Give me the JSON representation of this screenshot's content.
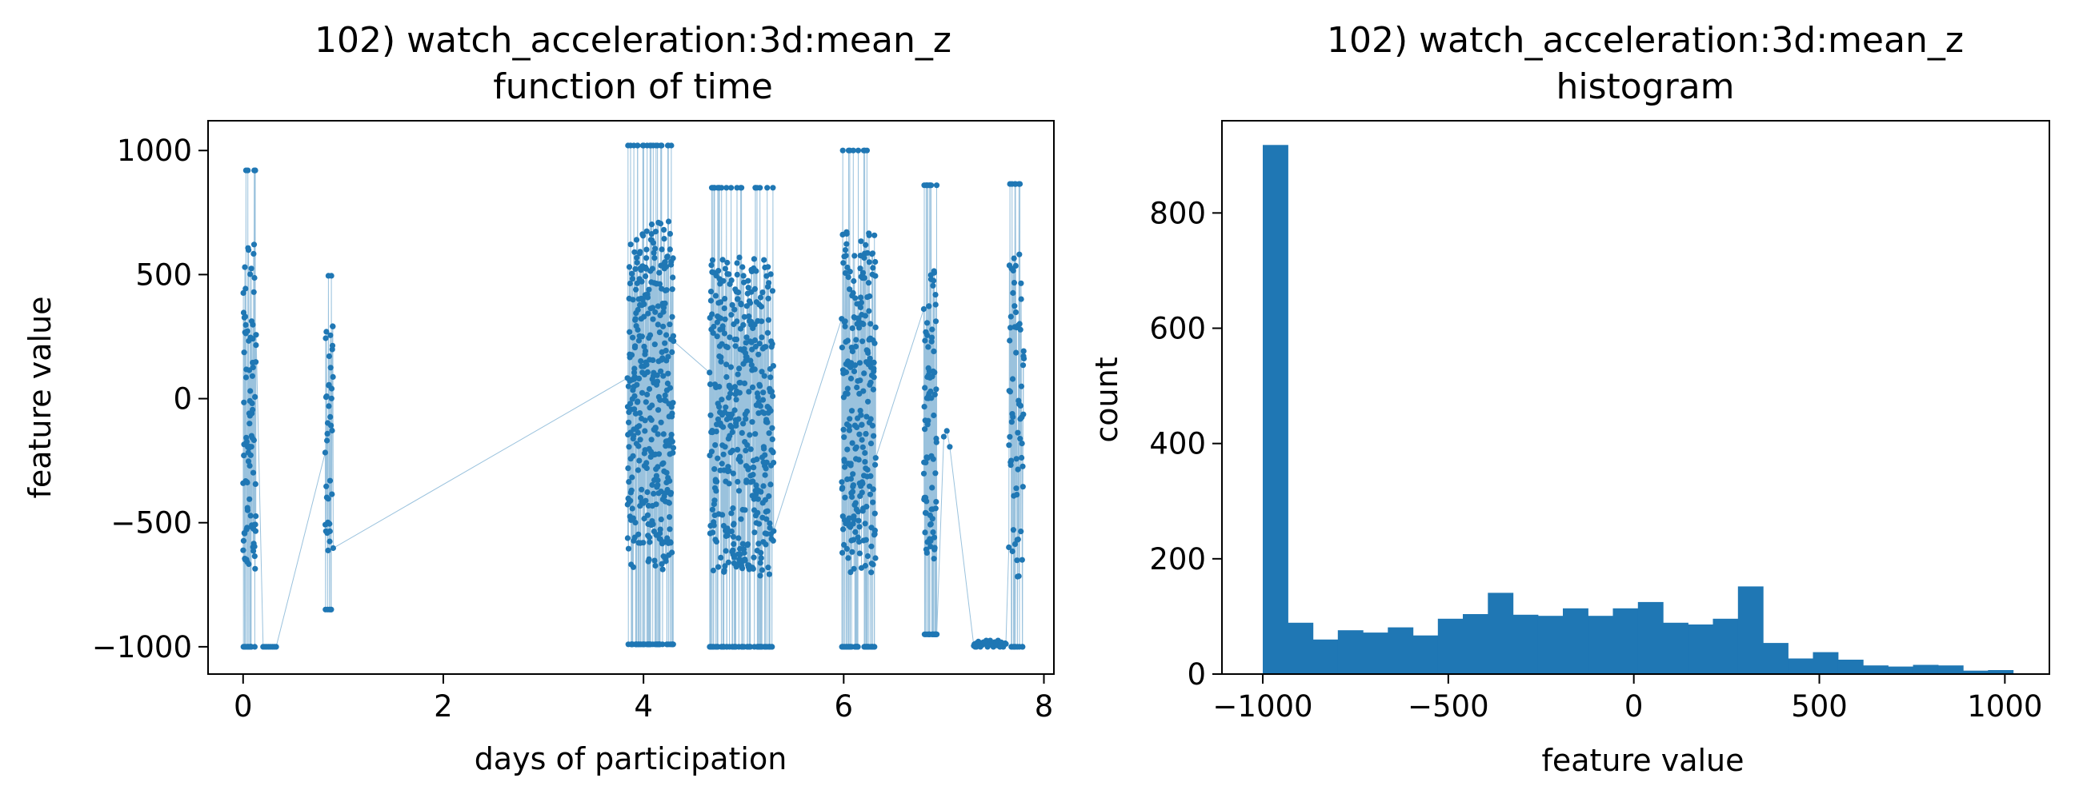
{
  "colors": {
    "series": "#1f77b4",
    "axis": "#000000",
    "background": "#ffffff"
  },
  "chart_data": [
    {
      "type": "line",
      "title": "102) watch_acceleration:3d:mean_z",
      "subtitle": "function of time",
      "xlabel": "days of participation",
      "ylabel": "feature value",
      "xlim": [
        -0.35,
        8.1
      ],
      "ylim": [
        -1110,
        1120
      ],
      "xticks": [
        0,
        2,
        4,
        6,
        8
      ],
      "yticks": [
        -1000,
        -500,
        0,
        500,
        1000
      ],
      "ytick_labels": [
        "−1000",
        "−500",
        "0",
        "500",
        "1000"
      ],
      "markers": true,
      "bursts": [
        {
          "start": 0.0,
          "end": 0.13,
          "n": 110,
          "low": -1000,
          "high": 920,
          "seed": 11
        },
        {
          "start": 0.2,
          "end": 0.33,
          "n": 8,
          "low": -1000,
          "high": -1000,
          "seed": 12
        },
        {
          "start": 0.82,
          "end": 0.9,
          "n": 45,
          "low": -850,
          "high": 495,
          "seed": 13
        },
        {
          "start": 3.84,
          "end": 4.3,
          "n": 420,
          "low": -990,
          "high": 1020,
          "seed": 14
        },
        {
          "start": 4.66,
          "end": 5.3,
          "n": 480,
          "low": -1000,
          "high": 850,
          "seed": 15
        },
        {
          "start": 5.98,
          "end": 6.32,
          "n": 280,
          "low": -1000,
          "high": 1000,
          "seed": 16
        },
        {
          "start": 6.8,
          "end": 6.93,
          "n": 110,
          "low": -950,
          "high": 860,
          "seed": 17
        },
        {
          "start": 7.0,
          "end": 7.06,
          "n": 3,
          "low": -240,
          "high": -130,
          "seed": 18
        },
        {
          "start": 7.3,
          "end": 7.62,
          "n": 50,
          "low": -1000,
          "high": -975,
          "seed": 19
        },
        {
          "start": 7.65,
          "end": 7.8,
          "n": 80,
          "low": -1000,
          "high": 865,
          "seed": 20
        }
      ]
    },
    {
      "type": "bar",
      "title": "102) watch_acceleration:3d:mean_z",
      "subtitle": "histogram",
      "xlabel": "feature value",
      "ylabel": "count",
      "xlim": [
        -1110,
        1120
      ],
      "ylim": [
        0,
        960
      ],
      "xticks": [
        -1000,
        -500,
        0,
        500,
        1000
      ],
      "xtick_labels": [
        "−1000",
        "−500",
        "0",
        "500",
        "1000"
      ],
      "yticks": [
        0,
        200,
        400,
        600,
        800
      ],
      "bin_start": -1000,
      "bin_width": 67.4,
      "values": [
        918,
        89,
        60,
        76,
        72,
        81,
        67,
        96,
        104,
        141,
        103,
        101,
        114,
        101,
        114,
        125,
        89,
        86,
        96,
        152,
        54,
        27,
        38,
        25,
        15,
        13,
        16,
        15,
        6,
        7
      ]
    }
  ]
}
